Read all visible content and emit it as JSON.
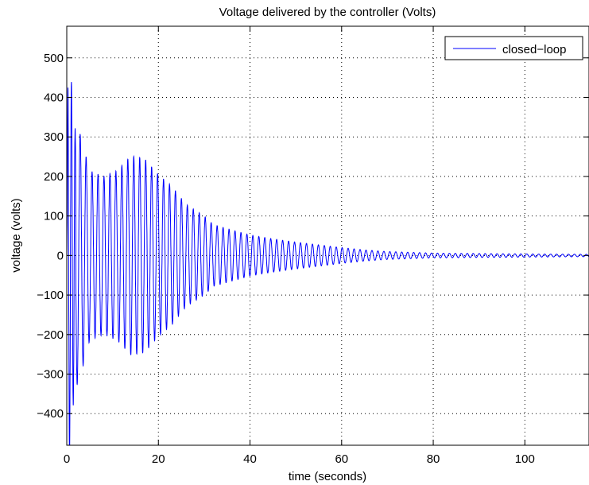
{
  "chart_data": {
    "type": "line",
    "title": "Voltage delivered by the controller (Volts)",
    "xlabel": "time (seconds)",
    "ylabel": "voltage (volts)",
    "xlim": [
      0,
      114
    ],
    "ylim": [
      -480,
      580
    ],
    "xticks": [
      0,
      20,
      40,
      60,
      80,
      100
    ],
    "xtick_labels": [
      "0",
      "20",
      "40",
      "60",
      "80",
      "100"
    ],
    "yticks": [
      -400,
      -300,
      -200,
      -100,
      0,
      100,
      200,
      300,
      400,
      500
    ],
    "ytick_labels": [
      "−400",
      "−300",
      "−200",
      "−100",
      "0",
      "100",
      "200",
      "300",
      "400",
      "500"
    ],
    "grid": true,
    "legend": {
      "position": "top-right",
      "entries": [
        "closed−loop"
      ]
    },
    "series": [
      {
        "name": "closed−loop",
        "color": "#0000ff",
        "style": "damped oscillation",
        "period": 1.3,
        "envelope": [
          [
            0,
            0
          ],
          [
            0.3,
            570
          ],
          [
            0.9,
            480
          ],
          [
            1.8,
            340
          ],
          [
            3,
            305
          ],
          [
            5,
            215
          ],
          [
            8,
            200
          ],
          [
            11,
            215
          ],
          [
            14,
            252
          ],
          [
            17,
            245
          ],
          [
            20,
            205
          ],
          [
            23,
            175
          ],
          [
            26,
            130
          ],
          [
            30,
            100
          ],
          [
            32,
            78
          ],
          [
            35,
            68
          ],
          [
            40,
            52
          ],
          [
            45,
            42
          ],
          [
            50,
            34
          ],
          [
            55,
            27
          ],
          [
            60,
            20
          ],
          [
            65,
            14
          ],
          [
            70,
            10
          ],
          [
            75,
            8
          ],
          [
            80,
            6
          ],
          [
            90,
            5
          ],
          [
            100,
            4
          ],
          [
            114,
            3
          ]
        ]
      }
    ]
  }
}
